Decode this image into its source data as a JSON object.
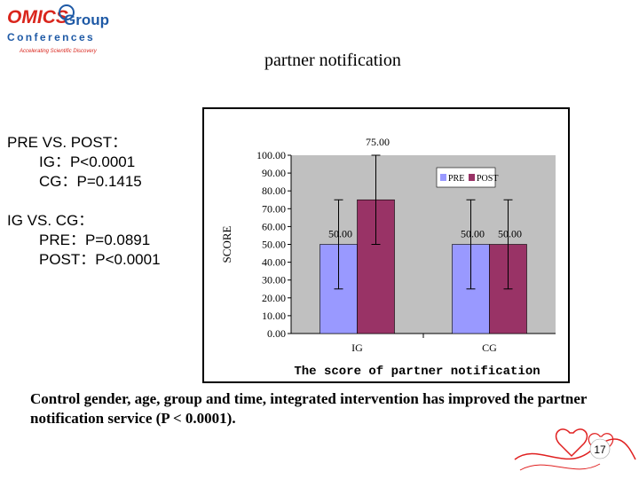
{
  "logo": {
    "line1": "OMICS",
    "line2": "Group",
    "line3": "Conferences",
    "tagline": "Accelerating Scientific Discovery"
  },
  "slide_title": "partner notification",
  "stats": {
    "heading1": "PRE VS. POST：",
    "line1": "IG：P<0.0001",
    "line2": "CG：P=0.1415",
    "heading2": "IG VS. CG：",
    "line3": "PRE：P=0.0891",
    "line4": "POST：P<0.0001"
  },
  "note": "Control gender, age, group and time, integrated intervention has improved the partner notification service (P < 0.0001).",
  "page_number": "17",
  "colors": {
    "pre": "#9999ff",
    "post": "#993366",
    "plot_bg": "#c0c0c0",
    "logo_blue": "#1f5aa6",
    "logo_red": "#d9251c"
  },
  "chart_data": {
    "type": "bar",
    "title": "",
    "xlabel": "The score of partner notification",
    "ylabel": "SCORE",
    "categories": [
      "IG",
      "CG"
    ],
    "series": [
      {
        "name": "PRE",
        "values": [
          50,
          50
        ],
        "labels": [
          "50.00",
          "50.00"
        ],
        "error": [
          25,
          25
        ]
      },
      {
        "name": "POST",
        "values": [
          75,
          50
        ],
        "labels": [
          "75.00",
          "50.00"
        ],
        "error": [
          25,
          25
        ]
      }
    ],
    "ylim": [
      0,
      100
    ],
    "yticks": [
      "0.00",
      "10.00",
      "20.00",
      "30.00",
      "40.00",
      "50.00",
      "60.00",
      "70.00",
      "80.00",
      "90.00",
      "100.00"
    ],
    "grid": false,
    "legend_position": "top-right"
  }
}
